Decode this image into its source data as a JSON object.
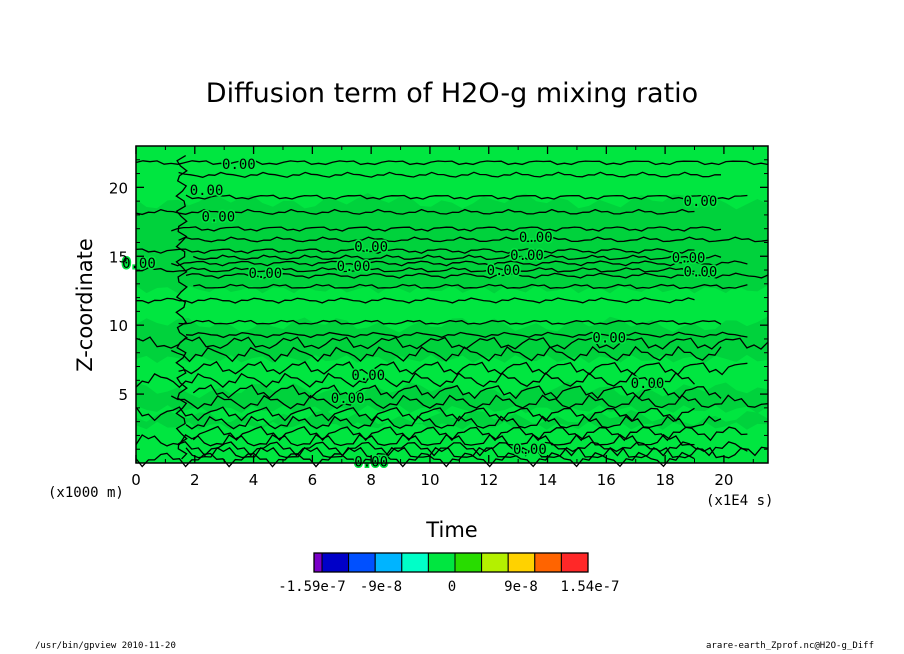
{
  "chart_data": {
    "type": "heatmap",
    "title": "Diffusion term of H2O-g mixing ratio",
    "xlabel": "Time",
    "ylabel": "Z-coordinate",
    "x_unit": "(x1E4 s)",
    "y_unit": "(x1000 m)",
    "xlim": [
      0,
      21.5
    ],
    "ylim": [
      0,
      23
    ],
    "x_ticks": [
      0,
      2,
      4,
      6,
      8,
      10,
      12,
      14,
      16,
      18,
      20
    ],
    "y_ticks": [
      5,
      10,
      15,
      20
    ],
    "background_color": "#00e640",
    "contour_labels": [
      {
        "x": 3.5,
        "y": 21.7,
        "text": "0.00"
      },
      {
        "x": 2.4,
        "y": 19.8,
        "text": "0.00"
      },
      {
        "x": 2.8,
        "y": 17.9,
        "text": "0.00"
      },
      {
        "x": 8.0,
        "y": 15.7,
        "text": "0.00"
      },
      {
        "x": 13.6,
        "y": 16.4,
        "text": "0.00"
      },
      {
        "x": 13.3,
        "y": 15.1,
        "text": "0.00"
      },
      {
        "x": 7.4,
        "y": 14.3,
        "text": "0.00"
      },
      {
        "x": 4.4,
        "y": 13.8,
        "text": "0.00"
      },
      {
        "x": 12.5,
        "y": 14.0,
        "text": "0.00"
      },
      {
        "x": 19.2,
        "y": 19.0,
        "text": "0.00"
      },
      {
        "x": 18.8,
        "y": 14.9,
        "text": "0.00"
      },
      {
        "x": 19.2,
        "y": 13.9,
        "text": "0.00"
      },
      {
        "x": 16.1,
        "y": 9.1,
        "text": "0.00"
      },
      {
        "x": 7.9,
        "y": 6.4,
        "text": "0.00"
      },
      {
        "x": 17.4,
        "y": 5.8,
        "text": "0.00"
      },
      {
        "x": 7.2,
        "y": 4.7,
        "text": "0.00"
      },
      {
        "x": 13.4,
        "y": 1.0,
        "text": "0.00"
      },
      {
        "x": 8.0,
        "y": 0.1,
        "text": "0.00"
      },
      {
        "x": 0.1,
        "y": 14.5,
        "text": "0.00"
      }
    ],
    "colorbar": {
      "colors": [
        "#7a00c8",
        "#0000c8",
        "#0050ff",
        "#00b4ff",
        "#00ffc8",
        "#00e640",
        "#28dc00",
        "#b4f000",
        "#ffd200",
        "#ff6400",
        "#ff2828"
      ],
      "tick_labels": [
        "-1.59e-7",
        "-9e-8",
        "0",
        "9e-8",
        "1.54e-7"
      ]
    }
  },
  "footer": {
    "left": "/usr/bin/gpview  2010-11-20",
    "right": "arare-earth_Zprof.nc@H2O-g_Diff"
  }
}
